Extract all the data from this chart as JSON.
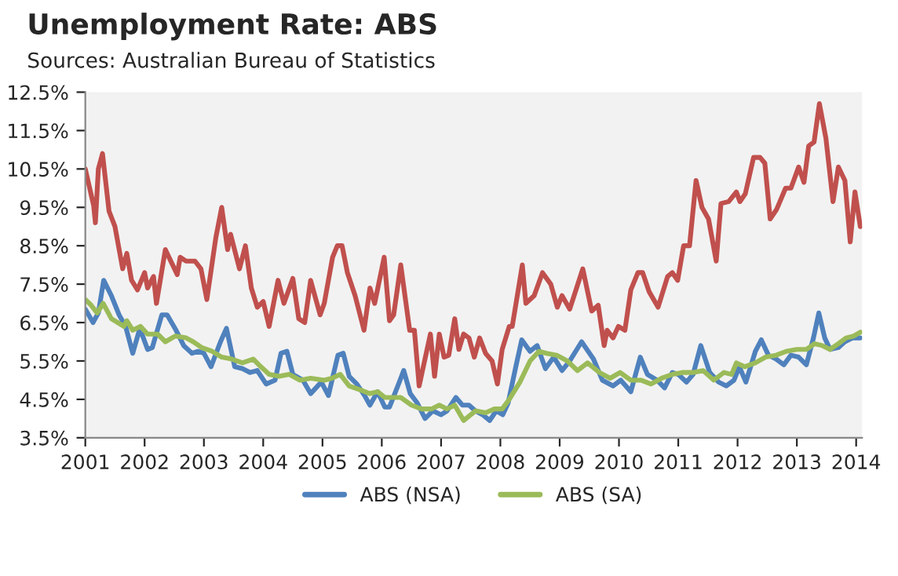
{
  "chart_data": {
    "type": "line",
    "title": "Unemployment Rate: ABS",
    "subtitle": "Sources: Australian Bureau of Statistics",
    "xlim": [
      2001,
      2014.1
    ],
    "xticks": [
      2001,
      2002,
      2003,
      2004,
      2005,
      2006,
      2007,
      2008,
      2009,
      2010,
      2011,
      2012,
      2013,
      2014
    ],
    "ylim": [
      3.5,
      12.5
    ],
    "yticks": [
      {
        "value": 3.5,
        "label": "3.5%"
      },
      {
        "value": 4.5,
        "label": "4.5%"
      },
      {
        "value": 5.5,
        "label": "5.5%"
      },
      {
        "value": 6.5,
        "label": "6.5%"
      },
      {
        "value": 7.5,
        "label": "7.5%"
      },
      {
        "value": 8.5,
        "label": "8.5%"
      },
      {
        "value": 9.5,
        "label": "9.5%"
      },
      {
        "value": 10.5,
        "label": "10.5%"
      },
      {
        "value": 11.5,
        "label": "11.5%"
      },
      {
        "value": 12.5,
        "label": "12.5%"
      }
    ],
    "grid": false,
    "legend": "bottom",
    "marker": "none",
    "line_style": "solid",
    "series": [
      {
        "color": "#c0504d",
        "x": [
          2001.0,
          2001.14,
          2001.17,
          2001.22,
          2001.29,
          2001.4,
          2001.5,
          2001.63,
          2001.7,
          2001.78,
          2001.88,
          2002.0,
          2002.05,
          2002.15,
          2002.2,
          2002.35,
          2002.55,
          2002.6,
          2002.7,
          2002.85,
          2002.95,
          2003.05,
          2003.2,
          2003.3,
          2003.4,
          2003.45,
          2003.6,
          2003.7,
          2003.8,
          2003.9,
          2004.0,
          2004.1,
          2004.25,
          2004.35,
          2004.5,
          2004.6,
          2004.7,
          2004.8,
          2004.96,
          2005.03,
          2005.17,
          2005.25,
          2005.33,
          2005.42,
          2005.55,
          2005.7,
          2005.8,
          2005.88,
          2006.04,
          2006.13,
          2006.2,
          2006.32,
          2006.47,
          2006.55,
          2006.63,
          2006.82,
          2006.89,
          2006.97,
          2007.05,
          2007.13,
          2007.23,
          2007.3,
          2007.38,
          2007.47,
          2007.56,
          2007.65,
          2007.75,
          2007.86,
          2007.95,
          2008.03,
          2008.15,
          2008.2,
          2008.37,
          2008.43,
          2008.57,
          2008.71,
          2008.85,
          2008.96,
          2009.04,
          2009.17,
          2009.39,
          2009.54,
          2009.65,
          2009.75,
          2009.8,
          2009.9,
          2009.99,
          2010.1,
          2010.2,
          2010.32,
          2010.4,
          2010.51,
          2010.66,
          2010.82,
          2010.9,
          2010.99,
          2011.09,
          2011.19,
          2011.3,
          2011.4,
          2011.51,
          2011.64,
          2011.72,
          2011.85,
          2011.98,
          2012.04,
          2012.13,
          2012.27,
          2012.38,
          2012.46,
          2012.55,
          2012.66,
          2012.81,
          2012.9,
          2013.03,
          2013.12,
          2013.2,
          2013.29,
          2013.38,
          2013.49,
          2013.61,
          2013.7,
          2013.81,
          2013.9,
          2013.98,
          2014.07
        ],
        "values": [
          10.5,
          9.55,
          9.1,
          10.5,
          10.9,
          9.4,
          9.0,
          7.9,
          8.3,
          7.6,
          7.35,
          7.8,
          7.4,
          7.7,
          7.0,
          8.4,
          7.75,
          8.2,
          8.1,
          8.1,
          7.9,
          7.1,
          8.7,
          9.5,
          8.4,
          8.8,
          7.9,
          8.5,
          7.4,
          6.9,
          7.05,
          6.4,
          7.6,
          7.0,
          7.65,
          6.6,
          6.5,
          7.6,
          6.7,
          7.0,
          8.2,
          8.5,
          8.5,
          7.8,
          7.2,
          6.3,
          7.4,
          7.0,
          8.2,
          6.55,
          6.7,
          8.0,
          6.3,
          6.3,
          4.85,
          6.2,
          5.1,
          6.2,
          5.6,
          5.65,
          6.6,
          5.8,
          6.2,
          6.1,
          5.6,
          6.1,
          5.7,
          5.5,
          4.9,
          5.8,
          6.4,
          6.4,
          8.0,
          7.0,
          7.2,
          7.8,
          7.5,
          6.9,
          7.2,
          6.85,
          7.9,
          6.8,
          6.95,
          5.9,
          6.3,
          6.1,
          6.4,
          6.3,
          7.35,
          7.8,
          7.8,
          7.3,
          6.9,
          7.7,
          7.8,
          7.6,
          8.5,
          8.5,
          10.2,
          9.5,
          9.2,
          8.1,
          9.6,
          9.65,
          9.9,
          9.65,
          9.85,
          10.8,
          10.8,
          10.65,
          9.2,
          9.45,
          10.0,
          10.0,
          10.55,
          10.15,
          11.1,
          11.2,
          12.2,
          11.3,
          9.65,
          10.55,
          10.2,
          8.6,
          9.9,
          9.0
        ]
      },
      {
        "name": "ABS (NSA)",
        "color": "#4f81bd",
        "x": [
          2001.0,
          2001.13,
          2001.22,
          2001.31,
          2001.44,
          2001.57,
          2001.68,
          2001.8,
          2001.92,
          2002.05,
          2002.13,
          2002.29,
          2002.38,
          2002.53,
          2002.66,
          2002.8,
          2002.9,
          2003.0,
          2003.12,
          2003.28,
          2003.38,
          2003.52,
          2003.65,
          2003.78,
          2003.9,
          2004.05,
          2004.2,
          2004.3,
          2004.4,
          2004.5,
          2004.67,
          2004.8,
          2004.98,
          2005.1,
          2005.26,
          2005.35,
          2005.45,
          2005.58,
          2005.71,
          2005.8,
          2005.93,
          2006.05,
          2006.13,
          2006.27,
          2006.37,
          2006.48,
          2006.6,
          2006.73,
          2006.86,
          2007.0,
          2007.1,
          2007.25,
          2007.36,
          2007.47,
          2007.58,
          2007.7,
          2007.82,
          2007.93,
          2008.04,
          2008.13,
          2008.26,
          2008.36,
          2008.5,
          2008.62,
          2008.76,
          2008.9,
          2009.04,
          2009.17,
          2009.37,
          2009.57,
          2009.72,
          2009.9,
          2010.03,
          2010.2,
          2010.36,
          2010.48,
          2010.64,
          2010.77,
          2010.9,
          2011.0,
          2011.14,
          2011.25,
          2011.38,
          2011.53,
          2011.68,
          2011.81,
          2011.94,
          2012.03,
          2012.14,
          2012.3,
          2012.4,
          2012.52,
          2012.65,
          2012.78,
          2012.9,
          2013.03,
          2013.16,
          2013.28,
          2013.37,
          2013.47,
          2013.56,
          2013.7,
          2013.81,
          2013.94,
          2014.07
        ],
        "values": [
          6.85,
          6.5,
          6.75,
          7.6,
          7.2,
          6.7,
          6.4,
          5.7,
          6.35,
          5.8,
          5.85,
          6.7,
          6.7,
          6.3,
          5.9,
          5.7,
          5.75,
          5.7,
          5.35,
          6.0,
          6.35,
          5.35,
          5.3,
          5.2,
          5.25,
          4.9,
          5.0,
          5.7,
          5.75,
          5.15,
          5.0,
          4.65,
          4.95,
          4.6,
          5.65,
          5.7,
          5.1,
          4.9,
          4.6,
          4.35,
          4.7,
          4.3,
          4.3,
          4.85,
          5.25,
          4.65,
          4.4,
          4.0,
          4.2,
          4.1,
          4.2,
          4.55,
          4.35,
          4.35,
          4.2,
          4.1,
          3.95,
          4.2,
          4.1,
          4.4,
          5.35,
          6.05,
          5.75,
          5.9,
          5.3,
          5.6,
          5.25,
          5.5,
          6.0,
          5.55,
          5.0,
          4.85,
          5.0,
          4.7,
          5.6,
          5.15,
          5.0,
          4.8,
          5.2,
          5.15,
          4.95,
          5.15,
          5.9,
          5.2,
          4.95,
          4.85,
          5.0,
          5.35,
          4.95,
          5.75,
          6.05,
          5.65,
          5.55,
          5.4,
          5.65,
          5.6,
          5.4,
          6.1,
          6.75,
          6.1,
          5.8,
          5.85,
          6.0,
          6.1,
          6.1
        ]
      },
      {
        "name": "ABS (SA)",
        "color": "#9bbb59",
        "x": [
          2001.0,
          2001.1,
          2001.2,
          2001.3,
          2001.44,
          2001.65,
          2001.7,
          2001.8,
          2001.93,
          2002.05,
          2002.22,
          2002.35,
          2002.52,
          2002.7,
          2002.82,
          2002.96,
          2003.14,
          2003.3,
          2003.47,
          2003.65,
          2003.83,
          2003.96,
          2004.1,
          2004.27,
          2004.44,
          2004.62,
          2004.8,
          2005.03,
          2005.16,
          2005.3,
          2005.45,
          2005.63,
          2005.8,
          2005.93,
          2006.05,
          2006.32,
          2006.5,
          2006.67,
          2006.84,
          2006.97,
          2007.1,
          2007.23,
          2007.38,
          2007.58,
          2007.75,
          2007.9,
          2008.03,
          2008.15,
          2008.33,
          2008.5,
          2008.65,
          2008.78,
          2008.95,
          2009.13,
          2009.3,
          2009.47,
          2009.67,
          2009.85,
          2010.02,
          2010.2,
          2010.37,
          2010.54,
          2010.72,
          2010.9,
          2011.07,
          2011.25,
          2011.42,
          2011.6,
          2011.77,
          2011.9,
          2011.98,
          2012.12,
          2012.3,
          2012.47,
          2012.65,
          2012.82,
          2013.0,
          2013.16,
          2013.3,
          2013.43,
          2013.56,
          2013.7,
          2013.83,
          2013.96,
          2014.07
        ],
        "values": [
          7.1,
          6.95,
          6.75,
          7.0,
          6.6,
          6.4,
          6.55,
          6.3,
          6.4,
          6.2,
          6.2,
          6.0,
          6.15,
          6.1,
          6.0,
          5.85,
          5.75,
          5.6,
          5.55,
          5.45,
          5.55,
          5.35,
          5.15,
          5.1,
          5.15,
          5.0,
          5.05,
          5.0,
          5.05,
          5.15,
          4.85,
          4.75,
          4.65,
          4.7,
          4.55,
          4.55,
          4.35,
          4.25,
          4.25,
          4.35,
          4.25,
          4.35,
          3.95,
          4.2,
          4.15,
          4.25,
          4.25,
          4.5,
          4.95,
          5.5,
          5.75,
          5.7,
          5.65,
          5.5,
          5.25,
          5.45,
          5.2,
          5.05,
          5.2,
          5.0,
          5.0,
          4.9,
          5.05,
          5.15,
          5.2,
          5.2,
          5.25,
          5.0,
          5.2,
          5.15,
          5.45,
          5.35,
          5.45,
          5.6,
          5.65,
          5.75,
          5.8,
          5.8,
          5.95,
          5.9,
          5.8,
          5.95,
          6.1,
          6.15,
          6.25
        ]
      }
    ]
  }
}
